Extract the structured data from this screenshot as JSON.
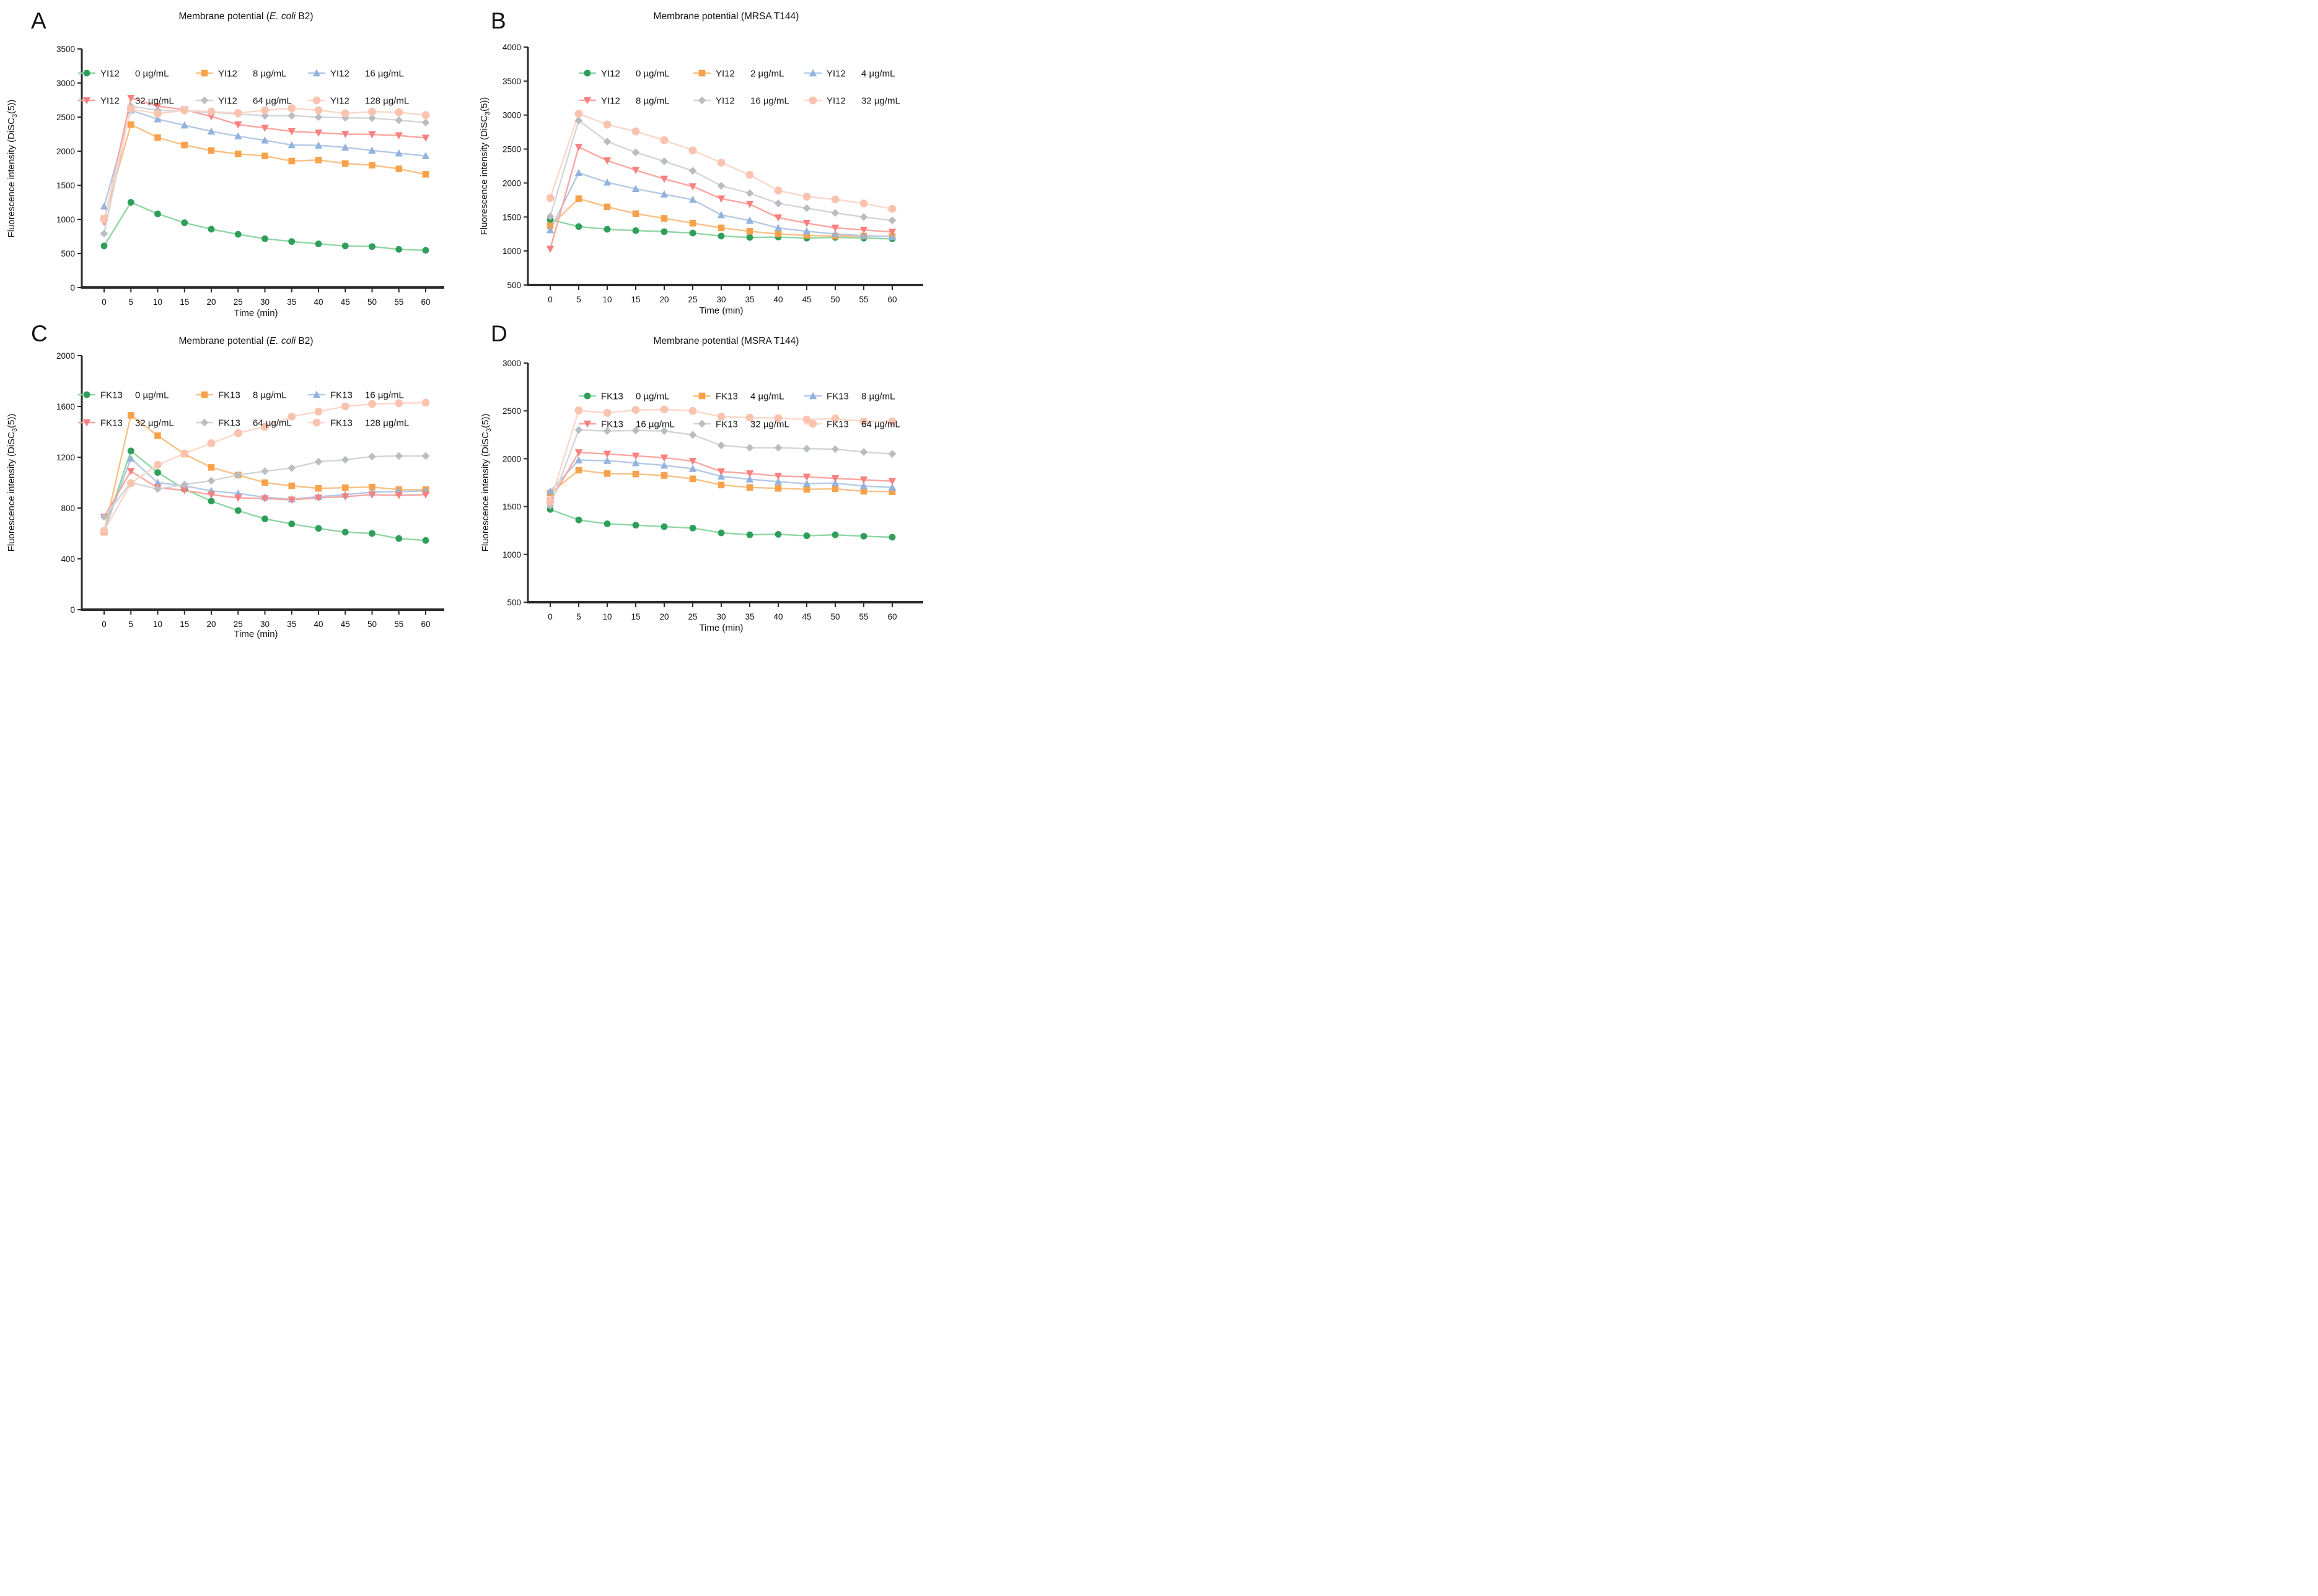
{
  "figure": {
    "background": "#ffffff",
    "xlabel": "Time (min)",
    "ylabel_pre": "Fluorescence intensity (DiSC",
    "ylabel_sub": "3",
    "ylabel_post": "(5))"
  },
  "chart_data": [
    {
      "panel_label": "A",
      "type": "line",
      "title_pre": "Membrane potential (",
      "title_italic": "E. coli",
      "title_post": " B2)",
      "xlabel": "Time (min)",
      "x": [
        0,
        5,
        10,
        15,
        20,
        25,
        30,
        35,
        40,
        45,
        50,
        55,
        60
      ],
      "xticks": [
        0,
        5,
        10,
        15,
        20,
        25,
        30,
        35,
        40,
        45,
        50,
        55,
        60
      ],
      "ylim": [
        0,
        3500
      ],
      "yticks": [
        0,
        500,
        1000,
        1500,
        2000,
        2500,
        3000,
        3500
      ],
      "legend_position": "top-inside",
      "grid": false,
      "series": [
        {
          "name": "YI12",
          "conc": "0 µg/mL",
          "marker": "circle",
          "color": "#2f9e5b",
          "line_color": "#8fd6a4",
          "values": [
            610,
            1250,
            1080,
            950,
            855,
            780,
            715,
            675,
            640,
            610,
            600,
            560,
            545
          ]
        },
        {
          "name": "YI12",
          "conc": "8 µg/mL",
          "marker": "square",
          "color": "#f7a24b",
          "line_color": "#f9c083",
          "values": [
            1010,
            2390,
            2200,
            2090,
            2010,
            1960,
            1930,
            1855,
            1870,
            1820,
            1795,
            1740,
            1660
          ]
        },
        {
          "name": "YI12",
          "conc": "16 µg/mL",
          "marker": "triangle-up",
          "color": "#92b4dc",
          "line_color": "#b3c9e6",
          "values": [
            1190,
            2600,
            2470,
            2380,
            2290,
            2220,
            2160,
            2090,
            2085,
            2055,
            2010,
            1970,
            1930
          ]
        },
        {
          "name": "YI12",
          "conc": "32 µg/mL",
          "marker": "triangle-down",
          "color": "#f8807e",
          "line_color": "#fba5a0",
          "values": [
            960,
            2780,
            2660,
            2610,
            2510,
            2390,
            2340,
            2290,
            2270,
            2250,
            2245,
            2230,
            2195
          ]
        },
        {
          "name": "YI12",
          "conc": "64 µg/mL",
          "marker": "diamond",
          "color": "#b9bdc1",
          "line_color": "#d2d5d8",
          "values": [
            790,
            2660,
            2600,
            2590,
            2570,
            2545,
            2520,
            2520,
            2500,
            2490,
            2485,
            2455,
            2420
          ]
        },
        {
          "name": "YI12",
          "conc": "128 µg/mL",
          "marker": "circle-lg",
          "color": "#f9c3b0",
          "line_color": "#fbd7c9",
          "values": [
            1000,
            2620,
            2550,
            2600,
            2580,
            2560,
            2600,
            2630,
            2600,
            2555,
            2580,
            2570,
            2530
          ]
        }
      ]
    },
    {
      "panel_label": "B",
      "type": "line",
      "title_pre": "Membrane potential (MRSA T144)",
      "title_italic": "",
      "title_post": "",
      "xlabel": "Time (min)",
      "x": [
        0,
        5,
        10,
        15,
        20,
        25,
        30,
        35,
        40,
        45,
        50,
        55,
        60
      ],
      "xticks": [
        0,
        5,
        10,
        15,
        20,
        25,
        30,
        35,
        40,
        45,
        50,
        55,
        60
      ],
      "ylim": [
        500,
        4000
      ],
      "yticks": [
        500,
        1000,
        1500,
        2000,
        2500,
        3000,
        3500,
        4000
      ],
      "legend_position": "top-inside",
      "grid": false,
      "series": [
        {
          "name": "YI12",
          "conc": "0 µg/mL",
          "marker": "circle",
          "color": "#2f9e5b",
          "line_color": "#8fd6a4",
          "values": [
            1460,
            1360,
            1320,
            1300,
            1285,
            1265,
            1220,
            1200,
            1205,
            1190,
            1200,
            1190,
            1180
          ]
        },
        {
          "name": "YI12",
          "conc": "2 µg/mL",
          "marker": "square",
          "color": "#f7a24b",
          "line_color": "#f9c083",
          "values": [
            1370,
            1770,
            1650,
            1550,
            1480,
            1410,
            1340,
            1290,
            1250,
            1230,
            1220,
            1220,
            1215
          ]
        },
        {
          "name": "YI12",
          "conc": "4 µg/mL",
          "marker": "triangle-up",
          "color": "#92b4dc",
          "line_color": "#b3c9e6",
          "values": [
            1310,
            2150,
            2010,
            1915,
            1835,
            1755,
            1530,
            1450,
            1340,
            1290,
            1250,
            1225,
            1210
          ]
        },
        {
          "name": "YI12",
          "conc": "8 µg/mL",
          "marker": "triangle-down",
          "color": "#f8807e",
          "line_color": "#fba5a0",
          "values": [
            1030,
            2530,
            2330,
            2190,
            2060,
            1950,
            1770,
            1690,
            1490,
            1410,
            1340,
            1310,
            1280
          ]
        },
        {
          "name": "YI12",
          "conc": "16 µg/mL",
          "marker": "diamond",
          "color": "#b9bdc1",
          "line_color": "#d2d5d8",
          "values": [
            1510,
            2920,
            2610,
            2450,
            2320,
            2180,
            1960,
            1850,
            1700,
            1630,
            1560,
            1500,
            1450
          ]
        },
        {
          "name": "YI12",
          "conc": "32 µg/mL",
          "marker": "circle-lg",
          "color": "#f9c3b0",
          "line_color": "#fbd7c9",
          "values": [
            1780,
            3020,
            2860,
            2760,
            2630,
            2480,
            2300,
            2120,
            1890,
            1800,
            1760,
            1700,
            1620
          ]
        }
      ]
    },
    {
      "panel_label": "C",
      "type": "line",
      "title_pre": "Membrane potential (",
      "title_italic": "E. coli",
      "title_post": " B2)",
      "xlabel": "Time (min)",
      "x": [
        0,
        5,
        10,
        15,
        20,
        25,
        30,
        35,
        40,
        45,
        50,
        55,
        60
      ],
      "xticks": [
        0,
        5,
        10,
        15,
        20,
        25,
        30,
        35,
        40,
        45,
        50,
        55,
        60
      ],
      "ylim": [
        0,
        2000
      ],
      "yticks": [
        0,
        400,
        800,
        1200,
        1600,
        2000
      ],
      "legend_position": "top-inside",
      "grid": false,
      "series": [
        {
          "name": "FK13",
          "conc": "0 µg/mL",
          "marker": "circle",
          "color": "#2f9e5b",
          "line_color": "#8fd6a4",
          "values": [
            620,
            1250,
            1080,
            950,
            855,
            780,
            715,
            675,
            640,
            610,
            600,
            560,
            545
          ]
        },
        {
          "name": "FK13",
          "conc": "8 µg/mL",
          "marker": "square",
          "color": "#f7a24b",
          "line_color": "#f9c083",
          "values": [
            610,
            1530,
            1370,
            1225,
            1120,
            1060,
            1000,
            975,
            955,
            960,
            965,
            945,
            945
          ]
        },
        {
          "name": "FK13",
          "conc": "16 µg/mL",
          "marker": "triangle-up",
          "color": "#92b4dc",
          "line_color": "#b3c9e6",
          "values": [
            620,
            1190,
            1000,
            975,
            935,
            915,
            885,
            870,
            890,
            905,
            925,
            930,
            935
          ]
        },
        {
          "name": "FK13",
          "conc": "32 µg/mL",
          "marker": "triangle-down",
          "color": "#f8807e",
          "line_color": "#fba5a0",
          "values": [
            730,
            1090,
            960,
            940,
            905,
            880,
            875,
            865,
            880,
            890,
            905,
            900,
            905
          ]
        },
        {
          "name": "FK13",
          "conc": "64 µg/mL",
          "marker": "diamond",
          "color": "#b9bdc1",
          "line_color": "#d2d5d8",
          "values": [
            730,
            1000,
            950,
            985,
            1015,
            1060,
            1090,
            1115,
            1165,
            1180,
            1205,
            1210,
            1210
          ]
        },
        {
          "name": "FK13",
          "conc": "128 µg/mL",
          "marker": "circle-lg",
          "color": "#f9c3b0",
          "line_color": "#fbd7c9",
          "values": [
            620,
            995,
            1140,
            1230,
            1310,
            1390,
            1440,
            1520,
            1560,
            1600,
            1620,
            1625,
            1630
          ]
        }
      ]
    },
    {
      "panel_label": "D",
      "type": "line",
      "title_pre": "Membrane potential (MSRA T144)",
      "title_italic": "",
      "title_post": "",
      "xlabel": "Time (min)",
      "x": [
        0,
        5,
        10,
        15,
        20,
        25,
        30,
        35,
        40,
        45,
        50,
        55,
        60
      ],
      "xticks": [
        0,
        5,
        10,
        15,
        20,
        25,
        30,
        35,
        40,
        45,
        50,
        55,
        60
      ],
      "ylim": [
        500,
        3000
      ],
      "yticks": [
        500,
        1000,
        1500,
        2000,
        2500,
        3000
      ],
      "legend_position": "top-inside",
      "grid": false,
      "series": [
        {
          "name": "FK13",
          "conc": "0 µg/mL",
          "marker": "circle",
          "color": "#2f9e5b",
          "line_color": "#8fd6a4",
          "values": [
            1470,
            1360,
            1320,
            1305,
            1290,
            1275,
            1225,
            1205,
            1210,
            1195,
            1205,
            1190,
            1180
          ]
        },
        {
          "name": "FK13",
          "conc": "4 µg/mL",
          "marker": "square",
          "color": "#f7a24b",
          "line_color": "#f9c083",
          "values": [
            1640,
            1880,
            1845,
            1840,
            1825,
            1790,
            1725,
            1700,
            1690,
            1680,
            1685,
            1660,
            1655
          ]
        },
        {
          "name": "FK13",
          "conc": "8 µg/mL",
          "marker": "triangle-up",
          "color": "#92b4dc",
          "line_color": "#b3c9e6",
          "values": [
            1660,
            1985,
            1980,
            1955,
            1930,
            1895,
            1815,
            1785,
            1760,
            1740,
            1745,
            1715,
            1700
          ]
        },
        {
          "name": "FK13",
          "conc": "16 µg/mL",
          "marker": "triangle-down",
          "color": "#f8807e",
          "line_color": "#fba5a0",
          "values": [
            1560,
            2065,
            2050,
            2030,
            2010,
            1975,
            1865,
            1845,
            1820,
            1810,
            1795,
            1780,
            1765
          ]
        },
        {
          "name": "FK13",
          "conc": "32 µg/mL",
          "marker": "diamond",
          "color": "#b9bdc1",
          "line_color": "#d2d5d8",
          "values": [
            1510,
            2300,
            2290,
            2295,
            2290,
            2250,
            2140,
            2115,
            2115,
            2105,
            2100,
            2070,
            2050
          ]
        },
        {
          "name": "FK13",
          "conc": "64 µg/mL",
          "marker": "circle-lg",
          "color": "#f9c3b0",
          "line_color": "#fbd7c9",
          "values": [
            1550,
            2505,
            2480,
            2510,
            2515,
            2500,
            2440,
            2430,
            2425,
            2410,
            2420,
            2390,
            2390
          ]
        }
      ]
    }
  ]
}
